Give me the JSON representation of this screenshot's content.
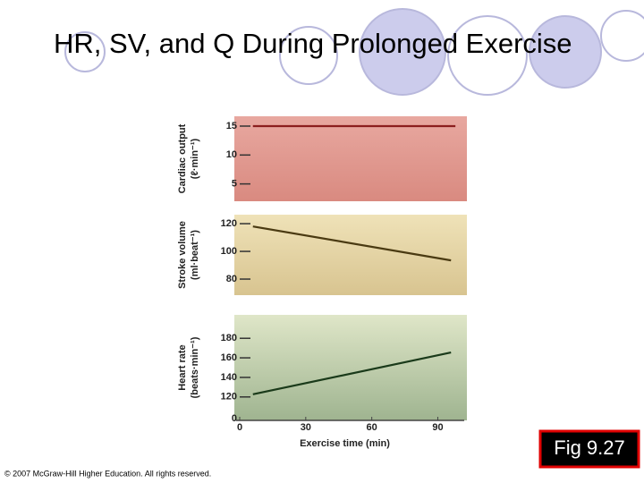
{
  "title": "HR, SV, and Q During Prolonged Exercise",
  "chart_data": [
    {
      "type": "line",
      "ylabel": "Cardiac output",
      "yunit": "(ℓ·min⁻¹)",
      "x": [
        6,
        98
      ],
      "series": [
        {
          "color": "#8b1e1e",
          "values": [
            15,
            15
          ]
        }
      ],
      "xlim": [
        0,
        102
      ],
      "ylim": [
        2,
        16.7
      ],
      "yticks": [
        5,
        10,
        15
      ],
      "background": [
        "#e8a8a0",
        "#d98a80"
      ]
    },
    {
      "type": "line",
      "ylabel": "Stroke volume",
      "yunit": "(ml·beat⁻¹)",
      "x": [
        6,
        96
      ],
      "series": [
        {
          "color": "#4a3a12",
          "values": [
            118,
            93.5
          ]
        }
      ],
      "xlim": [
        0,
        102
      ],
      "ylim": [
        68.4,
        126.5
      ],
      "yticks": [
        80,
        100,
        120
      ],
      "background": [
        "#efe2b8",
        "#d8c490"
      ]
    },
    {
      "type": "line",
      "ylabel": "Heart rate",
      "yunit": "(beats·min⁻¹)",
      "x": [
        6,
        96
      ],
      "series": [
        {
          "color": "#1a3a1a",
          "values": [
            122.7,
            165.5
          ]
        }
      ],
      "xlim": [
        0,
        102
      ],
      "ylim": [
        96,
        204
      ],
      "yticks": [
        120,
        140,
        160,
        180
      ],
      "y_origin_label": "0",
      "xticks": [
        0,
        30,
        60,
        90
      ],
      "xlabel": "Exercise time (min)",
      "background": [
        "#dfe6c8",
        "#9fb490"
      ]
    }
  ],
  "figure_label": "Fig 9.27",
  "copyright": "© 2007 McGraw-Hill Higher Education. All rights reserved."
}
